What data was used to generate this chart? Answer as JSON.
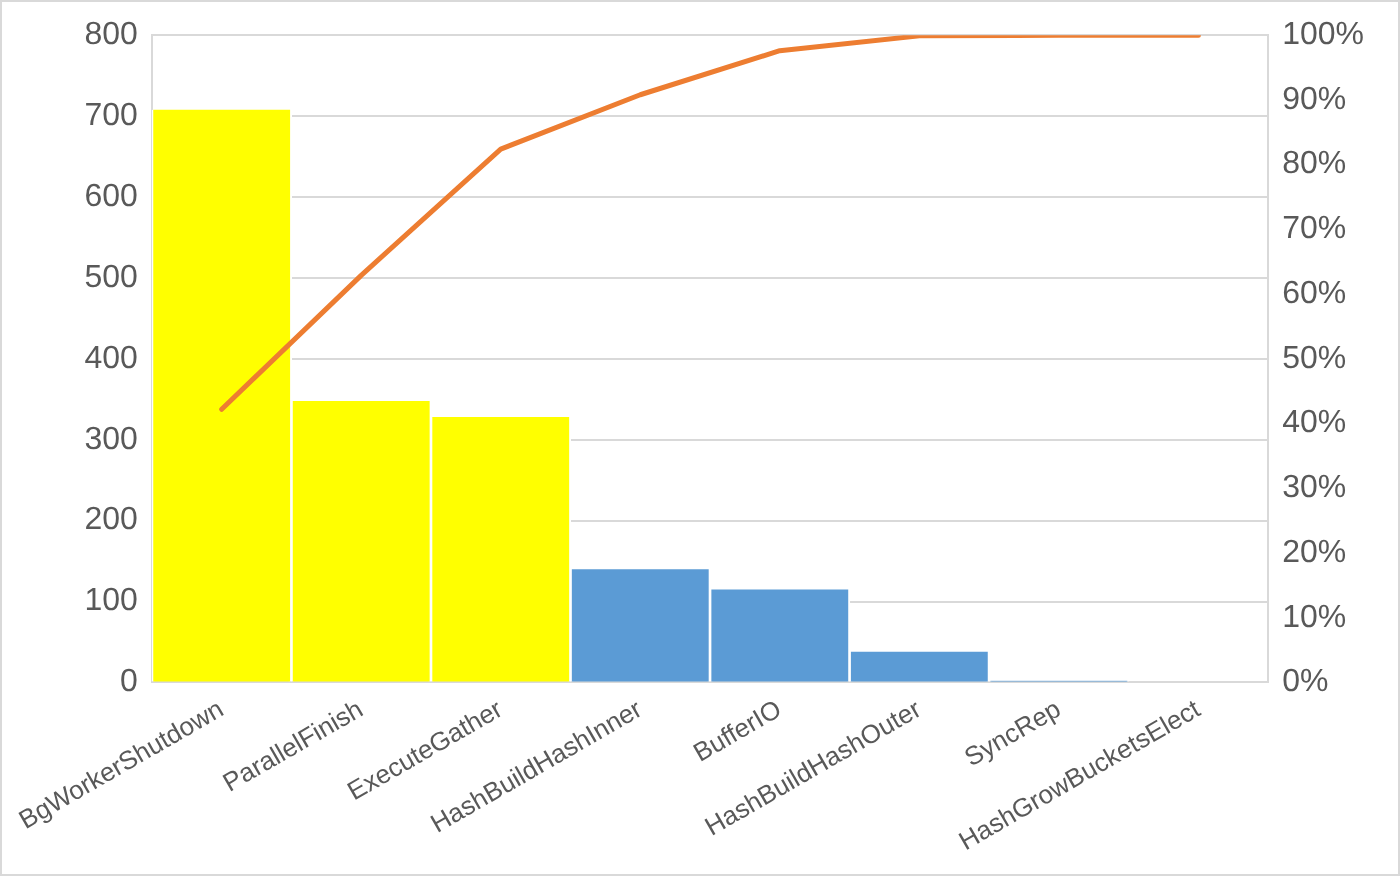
{
  "chart_data": {
    "type": "bar",
    "categories": [
      "BgWorkerShutdown",
      "ParallelFinish",
      "ExecuteGather",
      "HashBuildHashInner",
      "BufferIO",
      "HashBuildHashOuter",
      "SyncRep",
      "HashGrowBucketsElect"
    ],
    "series": [
      {
        "colors": [
          "#ffff00",
          "#ffff00",
          "#ffff00",
          "#5b9bd5",
          "#5b9bd5",
          "#5b9bd5",
          "#5b9bd5",
          "#5b9bd5"
        ],
        "values": [
          708,
          348,
          328,
          140,
          115,
          38,
          2,
          0
        ]
      },
      {
        "type": "line",
        "axis": "y2",
        "color": "#ed7d31",
        "values": [
          42.2,
          62.9,
          82.4,
          90.8,
          97.6,
          99.9,
          100,
          100
        ]
      }
    ],
    "ylim": [
      0,
      800
    ],
    "yticks": [
      0,
      100,
      200,
      300,
      400,
      500,
      600,
      700,
      800
    ],
    "y2lim": [
      0,
      100
    ],
    "y2ticks": [
      {
        "value": 0,
        "label": "0%"
      },
      {
        "value": 10,
        "label": "10%"
      },
      {
        "value": 20,
        "label": "20%"
      },
      {
        "value": 30,
        "label": "30%"
      },
      {
        "value": 40,
        "label": "40%"
      },
      {
        "value": 50,
        "label": "50%"
      },
      {
        "value": 60,
        "label": "60%"
      },
      {
        "value": 70,
        "label": "70%"
      },
      {
        "value": 80,
        "label": "80%"
      },
      {
        "value": 90,
        "label": "90%"
      },
      {
        "value": 100,
        "label": "100%"
      }
    ],
    "grid": "y",
    "legend": false,
    "marker": "none"
  }
}
